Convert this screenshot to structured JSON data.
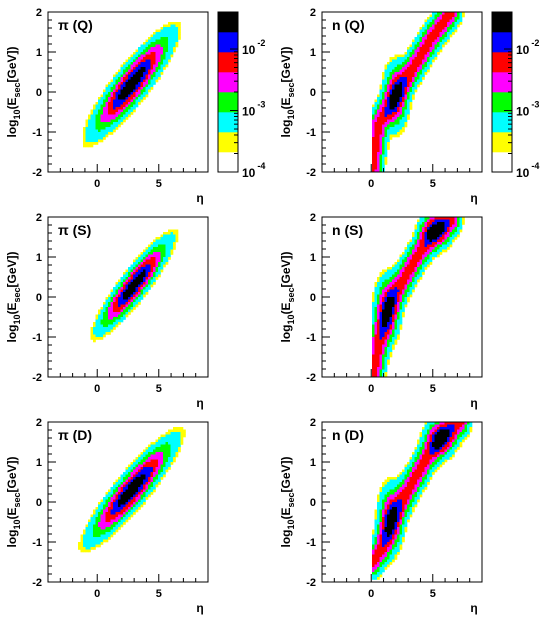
{
  "chart_data": {
    "type": "heatmap",
    "layout": "3 rows x 2 columns of density plots",
    "xlabel": "η",
    "ylabel_prefix": "log",
    "ylabel_sub": "10",
    "ylabel_mid": "(E",
    "ylabel_sub2": "sec",
    "ylabel_suffix": "[GeV])",
    "x_ticks": [
      "0",
      "5"
    ],
    "y_ticks": [
      "2",
      "1",
      "0",
      "-1",
      "-2"
    ],
    "xlim": [
      -4,
      9
    ],
    "ylim": [
      -2,
      2
    ],
    "colorbar": {
      "scale": "log",
      "range": [
        0.0001,
        0.04
      ],
      "labels": [
        {
          "base": "10",
          "exp": "-4"
        },
        {
          "base": "10",
          "exp": "-3"
        },
        {
          "base": "10",
          "exp": "-2"
        }
      ],
      "bands": [
        "#ffffff",
        "#ffff00",
        "#00ffff",
        "#00ff00",
        "#ff00ff",
        "#ff0000",
        "#0000ff",
        "#000000"
      ]
    },
    "panels": [
      {
        "label": "π (Q)",
        "shape": "ellipse",
        "center": [
          2.8,
          0.2
        ],
        "sx": 1.6,
        "sy": 0.62,
        "rho": 0.88
      },
      {
        "label": "n (Q)",
        "shape": "band",
        "points": [
          [
            0.1,
            -1.9
          ],
          [
            0.6,
            -0.8
          ],
          [
            1.6,
            -0.3
          ],
          [
            3.2,
            0.5
          ],
          [
            5.0,
            1.4
          ],
          [
            6.5,
            2.0
          ]
        ],
        "peak": [
          2.0,
          -0.1
        ]
      },
      {
        "label": "π (S)",
        "shape": "ellipse",
        "center": [
          3.0,
          0.3
        ],
        "sx": 1.4,
        "sy": 0.55,
        "rho": 0.9
      },
      {
        "label": "n (S)",
        "shape": "band",
        "points": [
          [
            0.2,
            -1.9
          ],
          [
            0.7,
            -1.0
          ],
          [
            1.3,
            -0.4
          ],
          [
            2.0,
            0.1
          ],
          [
            3.5,
            0.9
          ],
          [
            5.0,
            1.6
          ],
          [
            6.5,
            1.95
          ]
        ],
        "peak": [
          1.3,
          -0.3
        ],
        "peak2": [
          5.2,
          1.65
        ]
      },
      {
        "label": "π (D)",
        "shape": "ellipse",
        "center": [
          2.8,
          0.3
        ],
        "sx": 1.7,
        "sy": 0.62,
        "rho": 0.9
      },
      {
        "label": "n (D)",
        "shape": "band",
        "points": [
          [
            0.1,
            -1.5
          ],
          [
            0.8,
            -1.2
          ],
          [
            1.6,
            -0.5
          ],
          [
            3.0,
            0.3
          ],
          [
            4.5,
            1.1
          ],
          [
            6.0,
            1.7
          ],
          [
            7.2,
            2.0
          ]
        ],
        "peak": [
          1.6,
          -0.4
        ],
        "peak2": [
          5.6,
          1.6
        ]
      }
    ]
  }
}
